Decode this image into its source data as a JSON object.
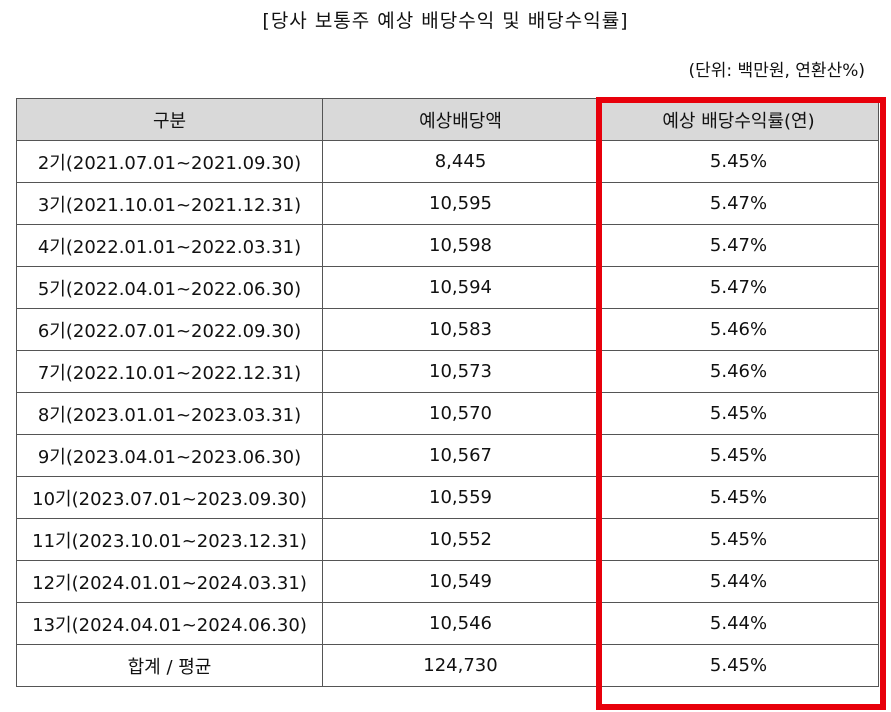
{
  "title": "[당사 보통주 예상 배당수익 및 배당수익률]",
  "unit": "(단위: 백만원, 연환산%)",
  "table": {
    "headers": [
      "구분",
      "예상배당액",
      "예상 배당수익률(연)"
    ],
    "rows": [
      {
        "period": "2기(2021.07.01~2021.09.30)",
        "dividend": "8,445",
        "yield": "5.45%"
      },
      {
        "period": "3기(2021.10.01~2021.12.31)",
        "dividend": "10,595",
        "yield": "5.47%"
      },
      {
        "period": "4기(2022.01.01~2022.03.31)",
        "dividend": "10,598",
        "yield": "5.47%"
      },
      {
        "period": "5기(2022.04.01~2022.06.30)",
        "dividend": "10,594",
        "yield": "5.47%"
      },
      {
        "period": "6기(2022.07.01~2022.09.30)",
        "dividend": "10,583",
        "yield": "5.46%"
      },
      {
        "period": "7기(2022.10.01~2022.12.31)",
        "dividend": "10,573",
        "yield": "5.46%"
      },
      {
        "period": "8기(2023.01.01~2023.03.31)",
        "dividend": "10,570",
        "yield": "5.45%"
      },
      {
        "period": "9기(2023.04.01~2023.06.30)",
        "dividend": "10,567",
        "yield": "5.45%"
      },
      {
        "period": "10기(2023.07.01~2023.09.30)",
        "dividend": "10,559",
        "yield": "5.45%"
      },
      {
        "period": "11기(2023.10.01~2023.12.31)",
        "dividend": "10,552",
        "yield": "5.45%"
      },
      {
        "period": "12기(2024.01.01~2024.03.31)",
        "dividend": "10,549",
        "yield": "5.44%"
      },
      {
        "period": "13기(2024.04.01~2024.06.30)",
        "dividend": "10,546",
        "yield": "5.44%"
      }
    ],
    "total": {
      "period": "합계 / 평균",
      "dividend": "124,730",
      "yield": "5.45%"
    }
  },
  "highlight_color": "#e8000b",
  "header_bg_color": "#d9d9d9"
}
